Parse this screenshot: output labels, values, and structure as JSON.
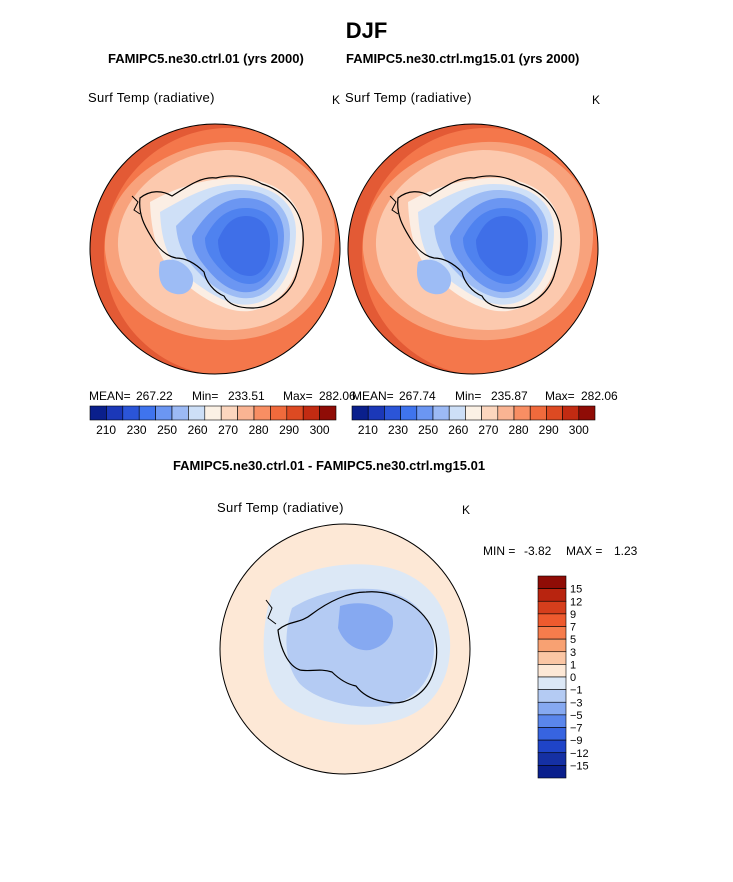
{
  "page_title": "DJF",
  "panels": [
    {
      "case_title": "FAMIPC5.ne30.ctrl.01 (yrs 2000)",
      "var_label": "Surf Temp (radiative)",
      "units": "K",
      "mean_label": "MEAN=",
      "mean": "267.22",
      "min_label": "Min=",
      "min": "233.51",
      "max_label": "Max=",
      "max": "282.06"
    },
    {
      "case_title": "FAMIPC5.ne30.ctrl.mg15.01 (yrs 2000)",
      "var_label": "Surf Temp (radiative)",
      "units": "K",
      "mean_label": "MEAN=",
      "mean": "267.74",
      "min_label": "Min=",
      "min": "235.87",
      "max_label": "Max=",
      "max": "282.06"
    }
  ],
  "diff_panel": {
    "title": "FAMIPC5.ne30.ctrl.01 - FAMIPC5.ne30.ctrl.mg15.01",
    "var_label": "Surf Temp (radiative)",
    "units": "K",
    "min_label": "MIN =",
    "min": "-3.82",
    "max_label": "MAX =",
    "max": "1.23"
  },
  "chart_data": [
    {
      "type": "heatmap",
      "title": "FAMIPC5.ne30.ctrl.01 (yrs 2000)",
      "projection": "south polar stereographic",
      "variable": "Surf Temp (radiative)",
      "units": "K",
      "mean": 267.22,
      "min": 233.51,
      "max": 282.06,
      "colorbar_ticks": [
        210,
        230,
        250,
        260,
        270,
        280,
        290,
        300
      ],
      "colorbar_colors": [
        "#0a1f8c",
        "#1b38b8",
        "#2b55d8",
        "#3f74ee",
        "#6b96f2",
        "#9cbaf5",
        "#cddff7",
        "#fbf1e5",
        "#fcd6be",
        "#fab493",
        "#f88e63",
        "#f06a3c",
        "#dd4a22",
        "#c22b12",
        "#8f0c06"
      ]
    },
    {
      "type": "heatmap",
      "title": "FAMIPC5.ne30.ctrl.mg15.01 (yrs 2000)",
      "projection": "south polar stereographic",
      "variable": "Surf Temp (radiative)",
      "units": "K",
      "mean": 267.74,
      "min": 235.87,
      "max": 282.06,
      "colorbar_ticks": [
        210,
        230,
        250,
        260,
        270,
        280,
        290,
        300
      ],
      "colorbar_colors": [
        "#0a1f8c",
        "#1b38b8",
        "#2b55d8",
        "#3f74ee",
        "#6b96f2",
        "#9cbaf5",
        "#cddff7",
        "#fbf1e5",
        "#fcd6be",
        "#fab493",
        "#f88e63",
        "#f06a3c",
        "#dd4a22",
        "#c22b12",
        "#8f0c06"
      ]
    },
    {
      "type": "heatmap",
      "title": "FAMIPC5.ne30.ctrl.01 - FAMIPC5.ne30.ctrl.mg15.01",
      "projection": "south polar stereographic",
      "variable": "Surf Temp (radiative)",
      "units": "K",
      "min": -3.82,
      "max": 1.23,
      "colorbar_ticks": [
        "15",
        "12",
        "9",
        "7",
        "5",
        "3",
        "1",
        "0",
        "−1",
        "−3",
        "−5",
        "−7",
        "−9",
        "−12",
        "−15"
      ],
      "colorbar_colors": [
        "#8f0c06",
        "#b8240f",
        "#d63e1c",
        "#ee5a2e",
        "#f67c4c",
        "#f8a172",
        "#fbc6a4",
        "#fde8d6",
        "#dce8f6",
        "#b4cbf3",
        "#86a9f1",
        "#5a86ec",
        "#3764e0",
        "#1f44c8",
        "#1530a4",
        "#0a1f8c"
      ]
    }
  ]
}
